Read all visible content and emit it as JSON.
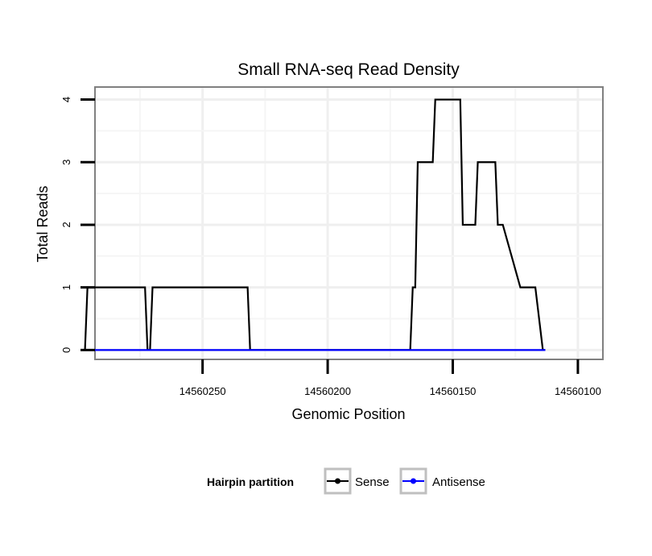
{
  "chart_data": {
    "type": "line",
    "title": "Small RNA-seq Read Density",
    "xlabel": "Genomic Position",
    "ylabel": "Total Reads",
    "x_reversed": true,
    "xlim": [
      14560293,
      14560090
    ],
    "ylim": [
      -0.15,
      4.2
    ],
    "xticks": [
      {
        "value": 14560250,
        "label": "14560250"
      },
      {
        "value": 14560200,
        "label": "14560200"
      },
      {
        "value": 14560150,
        "label": "14560150"
      },
      {
        "value": 14560100,
        "label": "14560100"
      }
    ],
    "yticks": [
      {
        "value": 0,
        "label": "0"
      },
      {
        "value": 1,
        "label": "1"
      },
      {
        "value": 2,
        "label": "2"
      },
      {
        "value": 3,
        "label": "3"
      },
      {
        "value": 4,
        "label": "4"
      }
    ],
    "grid": true,
    "legend": {
      "title": "Hairpin partition",
      "position": "bottom",
      "entries": [
        {
          "name": "Sense",
          "color": "#000000"
        },
        {
          "name": "Antisense",
          "color": "#0000ff"
        }
      ]
    },
    "series": [
      {
        "name": "Sense",
        "color": "#000000",
        "x": [
          14560297,
          14560296,
          14560273,
          14560272,
          14560271,
          14560270,
          14560251,
          14560250,
          14560249,
          14560248,
          14560246,
          14560245,
          14560232,
          14560231,
          14560167,
          14560166,
          14560165,
          14560164,
          14560158,
          14560157,
          14560147,
          14560146,
          14560141,
          14560140,
          14560136,
          14560135,
          14560133,
          14560132,
          14560131,
          14560130,
          14560123,
          14560122,
          14560118,
          14560117,
          14560114,
          14560113
        ],
        "y": [
          0,
          1,
          1,
          0,
          0,
          1,
          1,
          1,
          1,
          1,
          1,
          1,
          1,
          0,
          0,
          1,
          1,
          3,
          3,
          4,
          4,
          2,
          2,
          3,
          3,
          3,
          3,
          2,
          2,
          2,
          1,
          1,
          1,
          1,
          0,
          0
        ]
      },
      {
        "name": "Antisense",
        "color": "#0000ff",
        "x": [
          14560297,
          14560113
        ],
        "y": [
          0,
          0
        ]
      }
    ]
  }
}
